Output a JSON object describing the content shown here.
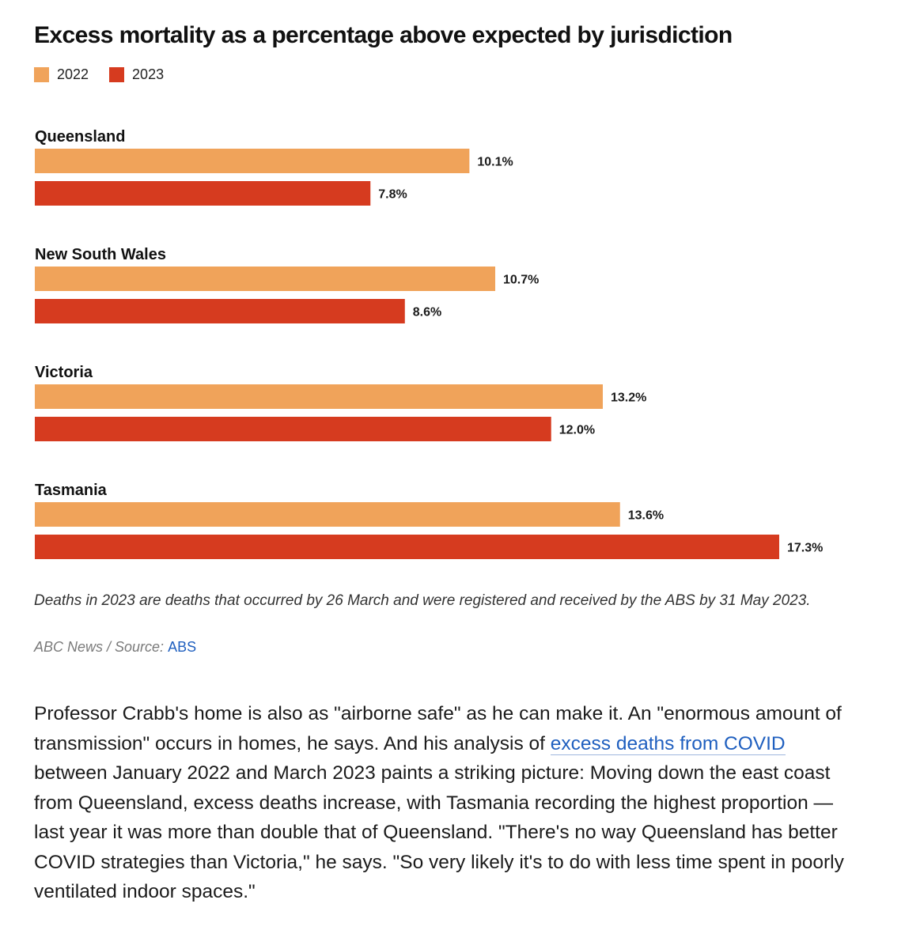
{
  "chart_data": {
    "type": "bar",
    "orientation": "horizontal",
    "title": "Excess mortality as a percentage above expected by jurisdiction",
    "categories": [
      "Queensland",
      "New South Wales",
      "Victoria",
      "Tasmania"
    ],
    "series": [
      {
        "name": "2022",
        "color": "#f0a35a",
        "values": [
          10.1,
          10.7,
          13.2,
          13.6
        ],
        "labels": [
          "10.1%",
          "10.7%",
          "13.2%",
          "13.6%"
        ]
      },
      {
        "name": "2023",
        "color": "#d63b1f",
        "values": [
          7.8,
          8.6,
          12.0,
          17.3
        ],
        "labels": [
          "7.8%",
          "8.6%",
          "12.0%",
          "17.3%"
        ]
      }
    ],
    "xlim": [
      0,
      17.3
    ],
    "grid": false,
    "legend": "top-left",
    "note": "Deaths in 2023 are deaths that occurred by 26 March and were registered and received by the ABS by 31  May 2023.",
    "credit_prefix": "ABC News / Source: ",
    "credit_link": "ABS"
  },
  "article": {
    "text_before": "Professor Crabb's home is also as \"airborne safe\" as he can make it. An \"enormous amount of transmission\" occurs in homes, he says. And his analysis of ",
    "link": "excess deaths from COVID",
    "text_after": " between January 2022 and March 2023 paints a striking picture: Moving down the east coast from Queensland, excess deaths increase, with Tasmania recording the highest proportion — last year it was more than double that of Queensland. \"There's no way Queensland has better COVID strategies than Victoria,\" he says. \"So very likely it's to do with less time spent in poorly ventilated indoor spaces.\""
  }
}
